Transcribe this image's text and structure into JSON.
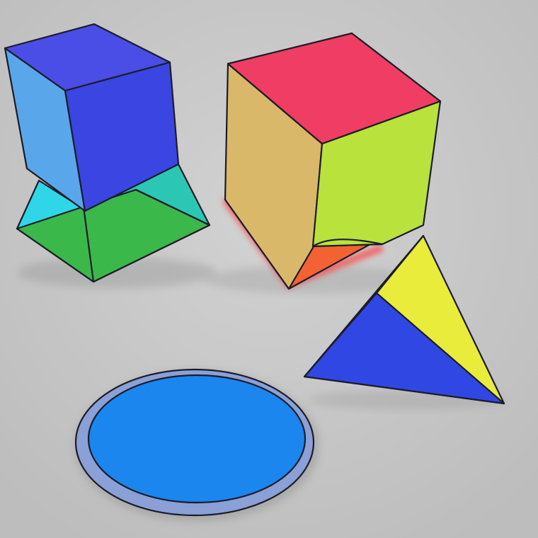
{
  "scene": {
    "background": "#c6c6c6",
    "objects": [
      {
        "name": "blue-cube-on-pyramid-base",
        "colors": {
          "cube_top": "#4a4de6",
          "cube_left": "#5aa6ea",
          "cube_front": "#3a45e2",
          "base_left": "#2fd6e8",
          "base_front": "#3ab84a",
          "base_right": "#2cc7b4"
        }
      },
      {
        "name": "open-cube",
        "colors": {
          "top": "#f03d63",
          "left": "#dab86a",
          "front": "#b9e23c",
          "inner_bottom": "#f36232",
          "glow": "#ff3a3a"
        }
      },
      {
        "name": "tetrahedron",
        "colors": {
          "front_face": "#3147e4",
          "yellow_face": "#e9ec3a",
          "highlight": "#f6f85a"
        }
      },
      {
        "name": "disc",
        "colors": {
          "face": "#1b86ee",
          "rim": "#8aa0d6"
        }
      }
    ]
  }
}
